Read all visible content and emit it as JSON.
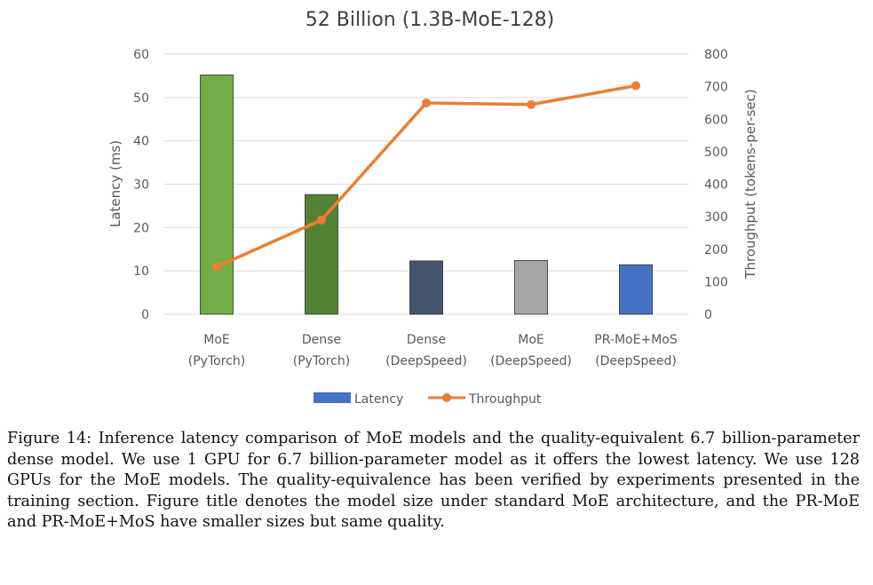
{
  "chart_data": {
    "type": "bar",
    "title": "52 Billion (1.3B-MoE-128)",
    "categories": [
      [
        "MoE",
        "(PyTorch)"
      ],
      [
        "Dense",
        "(PyTorch)"
      ],
      [
        "Dense",
        "(DeepSpeed)"
      ],
      [
        "MoE",
        "(DeepSpeed)"
      ],
      [
        "PR-MoE+MoS",
        "(DeepSpeed)"
      ]
    ],
    "series": [
      {
        "name": "Latency",
        "kind": "bar",
        "axis": "left",
        "values": [
          55.2,
          27.6,
          12.3,
          12.4,
          11.4
        ],
        "colors": [
          "#70ad47",
          "#548235",
          "#44546a",
          "#a5a5a5",
          "#4472c4"
        ],
        "legend_color": "#4472c4"
      },
      {
        "name": "Throughput",
        "kind": "line",
        "axis": "right",
        "values": [
          146,
          290,
          650,
          645,
          703
        ],
        "color": "#ed7d31"
      }
    ],
    "ylabel": "Latency (ms)",
    "ylim": [
      0,
      60
    ],
    "yticks": [
      0,
      10,
      20,
      30,
      40,
      50,
      60
    ],
    "y2label": "Throughput (tokens-per-sec)",
    "y2lim": [
      0,
      800
    ],
    "y2ticks": [
      0,
      100,
      200,
      300,
      400,
      500,
      600,
      700,
      800
    ],
    "grid": true,
    "legend_position": "bottom"
  },
  "caption": "Figure 14: Inference latency comparison of MoE models and the quality-equivalent 6.7 billion-parameter dense model. We use 1 GPU for 6.7 billion-parameter model as it offers the lowest latency. We use 128 GPUs for the MoE models. The quality-equivalence has been verified by experiments presented in the training section. Figure title denotes the model size under standard MoE architecture, and the PR-MoE and PR-MoE+MoS have smaller sizes but same quality."
}
